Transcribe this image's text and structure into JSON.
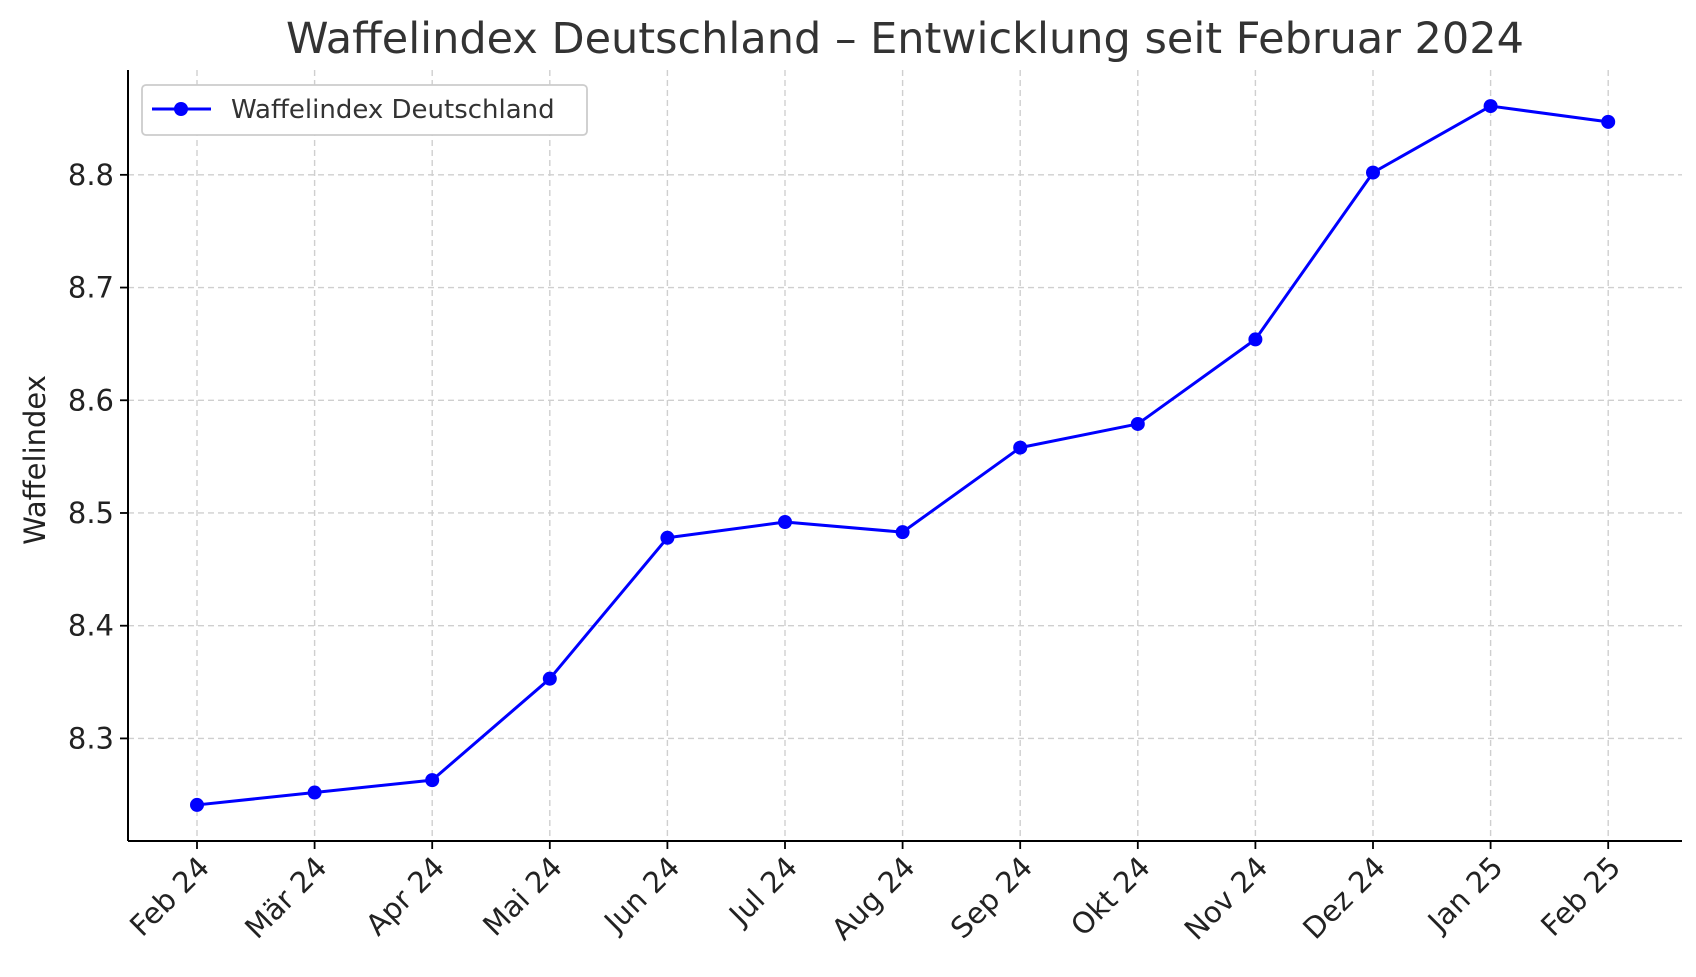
{
  "chart_data": {
    "type": "line",
    "title": "Waffelindex Deutschland – Entwicklung seit Februar 2024",
    "xlabel": "",
    "ylabel": "Waffelindex",
    "categories": [
      "Feb 24",
      "Mär 24",
      "Apr 24",
      "Mai 24",
      "Jun 24",
      "Jul 24",
      "Aug 24",
      "Sep 24",
      "Okt 24",
      "Nov 24",
      "Dez 24",
      "Jan 25",
      "Feb 25"
    ],
    "series": [
      {
        "name": "Waffelindex Deutschland",
        "color": "#0000ff",
        "marker": "circle",
        "values": [
          8.241,
          8.252,
          8.263,
          8.353,
          8.478,
          8.492,
          8.483,
          8.558,
          8.579,
          8.654,
          8.802,
          8.861,
          8.847
        ]
      }
    ],
    "ylim": [
      8.209,
      8.893
    ],
    "yticks": [
      8.3,
      8.4,
      8.5,
      8.6,
      8.7,
      8.8
    ],
    "ytick_labels": [
      "8.3",
      "8.4",
      "8.5",
      "8.6",
      "8.7",
      "8.8"
    ],
    "grid": true,
    "legend_position": "top-left",
    "xtick_rotation": "45 degrees"
  }
}
